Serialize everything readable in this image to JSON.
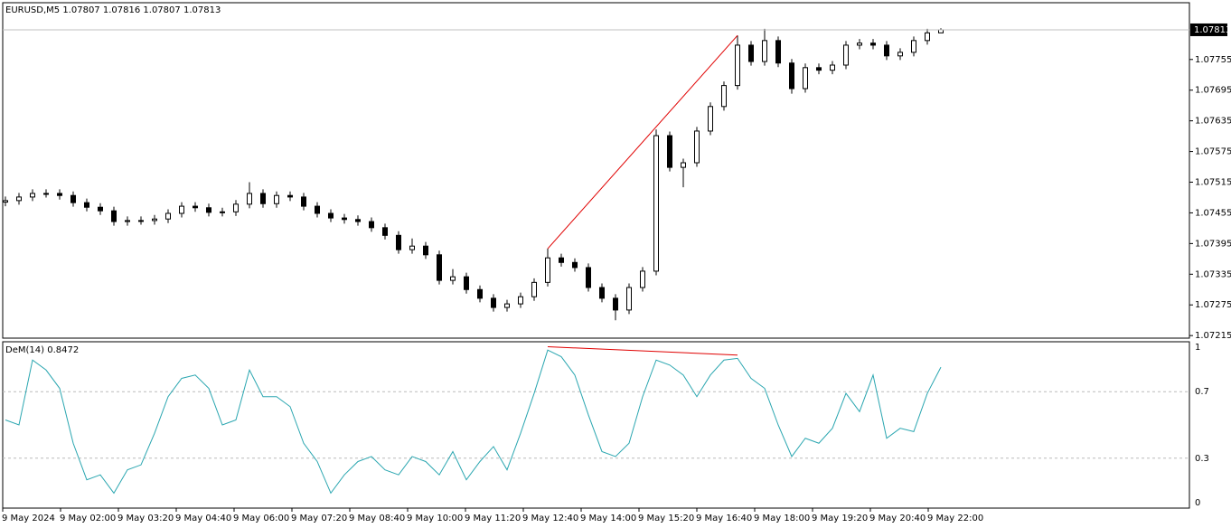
{
  "chart_data": [
    {
      "type": "candlestick",
      "title": "EURUSD,M5",
      "open": [
        1.07476,
        1.07479,
        1.07486,
        1.07493,
        1.07493,
        1.07489,
        1.07475,
        1.07466,
        1.07459,
        1.07438,
        1.0744,
        1.0744,
        1.07443,
        1.07454,
        1.07468,
        1.07465,
        1.07456,
        1.07457,
        1.07472,
        1.07493,
        1.07473,
        1.07489,
        1.07486,
        1.07468,
        1.07454,
        1.07445,
        1.07442,
        1.07438,
        1.07426,
        1.07411,
        1.07383,
        1.0739,
        1.07373,
        1.07323,
        1.0733,
        1.07305,
        1.07288,
        1.0727,
        1.07277,
        1.07291,
        1.07319,
        1.07367,
        1.07358,
        1.07348,
        1.07309,
        1.07288,
        1.07265,
        1.07309,
        1.07341,
        1.07606,
        1.07544,
        1.07553,
        1.07615,
        1.07663,
        1.07704,
        1.07783,
        1.07751,
        1.07792,
        1.07748,
        1.07698,
        1.07739,
        1.07734,
        1.07744,
        1.07783,
        1.07787,
        1.07783,
        1.07762,
        1.07769,
        1.07792,
        1.07807
      ],
      "high": [
        1.07487,
        1.07494,
        1.07501,
        1.07501,
        1.07501,
        1.07497,
        1.07483,
        1.07474,
        1.07467,
        1.07448,
        1.07448,
        1.07451,
        1.07462,
        1.07476,
        1.07476,
        1.07473,
        1.07465,
        1.0748,
        1.07515,
        1.07501,
        1.07497,
        1.07497,
        1.07494,
        1.07476,
        1.07462,
        1.07453,
        1.0745,
        1.07446,
        1.07434,
        1.07419,
        1.07405,
        1.07398,
        1.07381,
        1.07345,
        1.07338,
        1.07313,
        1.07296,
        1.07285,
        1.07299,
        1.07327,
        1.07385,
        1.07375,
        1.07366,
        1.07356,
        1.07317,
        1.07296,
        1.07317,
        1.07349,
        1.07618,
        1.07614,
        1.07561,
        1.07623,
        1.07671,
        1.07712,
        1.07802,
        1.07791,
        1.07815,
        1.078,
        1.07756,
        1.07747,
        1.07747,
        1.07752,
        1.07791,
        1.07795,
        1.07795,
        1.07791,
        1.07777,
        1.078,
        1.07815,
        1.07816
      ],
      "low": [
        1.07468,
        1.07471,
        1.07478,
        1.07485,
        1.07481,
        1.07467,
        1.07458,
        1.07451,
        1.0743,
        1.0743,
        1.07432,
        1.07432,
        1.07435,
        1.07446,
        1.07457,
        1.07448,
        1.07448,
        1.07449,
        1.07464,
        1.07465,
        1.07465,
        1.07478,
        1.0746,
        1.07446,
        1.07437,
        1.07434,
        1.0743,
        1.07418,
        1.07403,
        1.07375,
        1.07375,
        1.07365,
        1.07315,
        1.07315,
        1.07297,
        1.0728,
        1.07262,
        1.07262,
        1.07269,
        1.07283,
        1.07311,
        1.0735,
        1.0734,
        1.07301,
        1.0728,
        1.07245,
        1.07257,
        1.07301,
        1.07333,
        1.07536,
        1.07505,
        1.07545,
        1.07607,
        1.07655,
        1.07696,
        1.07743,
        1.07743,
        1.0774,
        1.07688,
        1.0769,
        1.07726,
        1.07726,
        1.07736,
        1.07775,
        1.07775,
        1.07754,
        1.07754,
        1.07761,
        1.07784,
        1.07807
      ],
      "close": [
        1.07479,
        1.07486,
        1.07493,
        1.07493,
        1.07489,
        1.07475,
        1.07466,
        1.07459,
        1.07438,
        1.0744,
        1.0744,
        1.07443,
        1.07454,
        1.07468,
        1.07465,
        1.07456,
        1.07457,
        1.07472,
        1.07493,
        1.07473,
        1.07489,
        1.07486,
        1.07468,
        1.07454,
        1.07445,
        1.07442,
        1.07438,
        1.07426,
        1.07411,
        1.07383,
        1.0739,
        1.07373,
        1.07323,
        1.0733,
        1.07305,
        1.07288,
        1.0727,
        1.07277,
        1.07291,
        1.07319,
        1.07367,
        1.07358,
        1.07348,
        1.07309,
        1.07288,
        1.07265,
        1.07309,
        1.07341,
        1.07606,
        1.07544,
        1.07553,
        1.07615,
        1.07663,
        1.07704,
        1.07783,
        1.07751,
        1.07792,
        1.07748,
        1.07698,
        1.07739,
        1.07734,
        1.07744,
        1.07783,
        1.07787,
        1.07783,
        1.07762,
        1.07769,
        1.07792,
        1.07807,
        1.07813
      ],
      "ylim": [
        1.0721,
        1.07866
      ],
      "yticks": [
        1.07755,
        1.07695,
        1.07635,
        1.07575,
        1.07515,
        1.07455,
        1.07395,
        1.07335,
        1.07275,
        1.07215
      ],
      "grid": false,
      "trendline": {
        "x": [
          40,
          54
        ],
        "y": [
          1.07385,
          1.07802
        ],
        "color": "#e00000"
      },
      "x_labels": [
        "9 May 2024",
        "9 May 02:00",
        "9 May 03:20",
        "9 May 04:40",
        "9 May 06:00",
        "9 May 07:20",
        "9 May 08:40",
        "9 May 10:00",
        "9 May 11:20",
        "9 May 12:40",
        "9 May 14:00",
        "9 May 15:20",
        "9 May 16:40",
        "9 May 18:00",
        "9 May 19:20",
        "9 May 20:40",
        "9 May 22:00"
      ]
    },
    {
      "type": "line",
      "title": "DeM(14)",
      "color": "#2aa6b0",
      "values": [
        0.53,
        0.5,
        0.89,
        0.83,
        0.72,
        0.39,
        0.17,
        0.2,
        0.09,
        0.23,
        0.26,
        0.45,
        0.67,
        0.78,
        0.8,
        0.72,
        0.5,
        0.53,
        0.83,
        0.67,
        0.67,
        0.61,
        0.39,
        0.28,
        0.09,
        0.2,
        0.28,
        0.31,
        0.23,
        0.2,
        0.31,
        0.28,
        0.2,
        0.34,
        0.17,
        0.28,
        0.37,
        0.23,
        0.45,
        0.69,
        0.95,
        0.91,
        0.8,
        0.56,
        0.34,
        0.31,
        0.39,
        0.67,
        0.89,
        0.86,
        0.8,
        0.67,
        0.8,
        0.89,
        0.9,
        0.78,
        0.72,
        0.5,
        0.31,
        0.42,
        0.39,
        0.48,
        0.69,
        0.58,
        0.8,
        0.42,
        0.48,
        0.46,
        0.69,
        0.8472
      ],
      "ylim": [
        0,
        1
      ],
      "yticks": [
        1,
        0.7,
        0.3,
        0
      ],
      "grid": true,
      "trendline": {
        "x": [
          40,
          54
        ],
        "y": [
          0.97,
          0.92
        ],
        "color": "#e00000"
      }
    }
  ]
}
